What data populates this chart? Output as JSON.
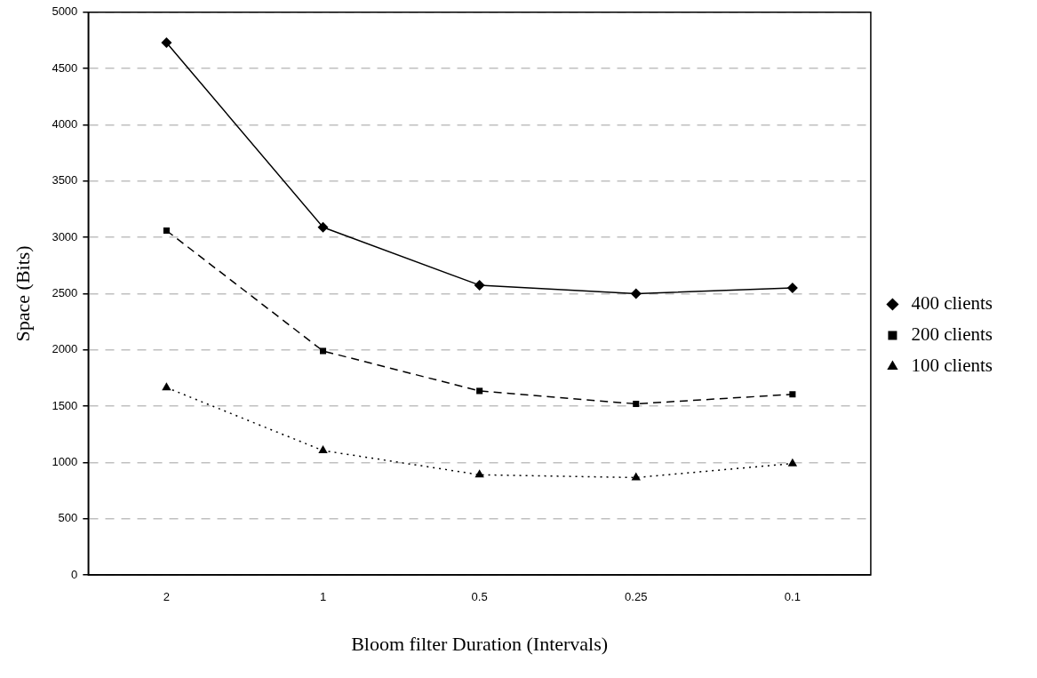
{
  "chart_data": {
    "type": "line",
    "xlabel": "Bloom filter Duration (Intervals)",
    "ylabel": "Space (Bits)",
    "categories": [
      "2",
      "1",
      "0.5",
      "0.25",
      "0.1"
    ],
    "series": [
      {
        "name": "400 clients",
        "color": "#000000",
        "marker": "diamond",
        "line_style": "solid",
        "values": [
          4730,
          3090,
          2575,
          2500,
          2550
        ]
      },
      {
        "name": "200 clients",
        "color": "#000000",
        "marker": "square",
        "line_style": "dashed",
        "values": [
          3060,
          1990,
          1635,
          1520,
          1605
        ]
      },
      {
        "name": "100 clients",
        "color": "#000000",
        "marker": "triangle",
        "line_style": "dotted",
        "values": [
          1665,
          1105,
          890,
          865,
          990
        ]
      }
    ],
    "ylim": [
      0,
      5000
    ],
    "yticks": [
      0,
      500,
      1000,
      1500,
      2000,
      2500,
      3000,
      3500,
      4000,
      4500,
      5000
    ],
    "grid": "y",
    "legend": "right"
  }
}
